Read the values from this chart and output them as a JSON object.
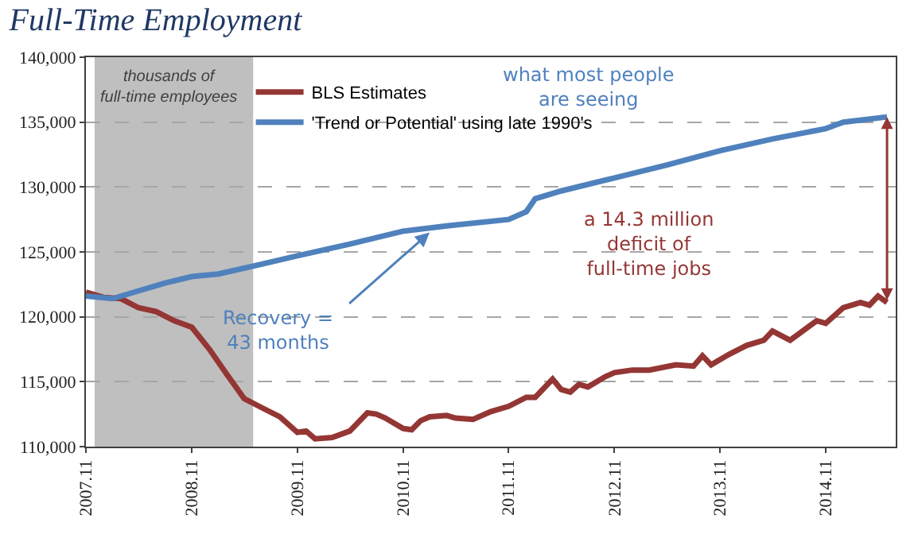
{
  "chart_data": {
    "type": "line",
    "title": "Full-Time Employment",
    "series": [
      {
        "name": "BLS Estimates",
        "color": "#943634",
        "x": [
          "2007-11",
          "2008-01",
          "2008-03",
          "2008-05",
          "2008-07",
          "2008-09",
          "2008-11",
          "2009-01",
          "2009-03",
          "2009-05",
          "2009-07",
          "2009-09",
          "2009-11",
          "2009-12",
          "2010-01",
          "2010-03",
          "2010-05",
          "2010-07",
          "2010-08",
          "2010-09",
          "2010-10",
          "2010-11",
          "2010-12",
          "2011-01",
          "2011-02",
          "2011-04",
          "2011-05",
          "2011-07",
          "2011-09",
          "2011-11",
          "2012-01",
          "2012-02",
          "2012-04",
          "2012-05",
          "2012-06",
          "2012-07",
          "2012-08",
          "2012-10",
          "2012-11",
          "2013-01",
          "2013-03",
          "2013-06",
          "2013-08",
          "2013-09",
          "2013-10",
          "2013-12",
          "2014-02",
          "2014-04",
          "2014-05",
          "2014-07",
          "2014-08",
          "2014-10",
          "2014-11",
          "2015-01",
          "2015-03",
          "2015-04",
          "2015-05",
          "2015-06"
        ],
        "values": [
          121900,
          121500,
          121400,
          120700,
          120400,
          119700,
          119200,
          117500,
          115600,
          113700,
          113000,
          112300,
          111100,
          111200,
          110600,
          110700,
          111200,
          112600,
          112500,
          112200,
          111800,
          111400,
          111300,
          112000,
          112300,
          112400,
          112200,
          112100,
          112700,
          113100,
          113800,
          113800,
          115200,
          114400,
          114200,
          114800,
          114600,
          115400,
          115700,
          115900,
          115900,
          116300,
          116200,
          117000,
          116300,
          117100,
          117800,
          118200,
          118900,
          118200,
          118700,
          119700,
          119500,
          120700,
          121100,
          120900,
          121600,
          121100
        ]
      },
      {
        "name": "'Trend or Potential' using late 1990's",
        "color": "#4f81bd",
        "x": [
          "2007-11",
          "2008-02",
          "2008-05",
          "2008-08",
          "2008-11",
          "2009-02",
          "2009-06",
          "2009-11",
          "2010-05",
          "2010-11",
          "2011-04",
          "2011-11",
          "2012-01",
          "2012-02",
          "2012-05",
          "2012-11",
          "2013-05",
          "2013-11",
          "2014-05",
          "2014-11",
          "2015-01",
          "2015-06"
        ],
        "values": [
          121600,
          121400,
          122000,
          122600,
          123100,
          123300,
          123900,
          124700,
          125600,
          126600,
          127000,
          127500,
          128100,
          129100,
          129700,
          130700,
          131700,
          132800,
          133700,
          134500,
          135000,
          135400
        ]
      }
    ],
    "ylim": [
      110000,
      140000
    ],
    "yticks": [
      {
        "value": 110000,
        "label": "110,000"
      },
      {
        "value": 115000,
        "label": "115,000"
      },
      {
        "value": 120000,
        "label": "120,000"
      },
      {
        "value": 125000,
        "label": "125,000"
      },
      {
        "value": 130000,
        "label": "130,000"
      },
      {
        "value": 135000,
        "label": "135,000"
      },
      {
        "value": 140000,
        "label": "140,000"
      }
    ],
    "xlim": [
      "2007-11",
      "2015-07"
    ],
    "xticks": [
      {
        "value": "2007-11",
        "label": "2007.11"
      },
      {
        "value": "2008-11",
        "label": "2008.11"
      },
      {
        "value": "2009-11",
        "label": "2009.11"
      },
      {
        "value": "2010-11",
        "label": "2010.11"
      },
      {
        "value": "2011-11",
        "label": "2011.11"
      },
      {
        "value": "2012-11",
        "label": "2012.11"
      },
      {
        "value": "2013-11",
        "label": "2013.11"
      },
      {
        "value": "2014-11",
        "label": "2014.11"
      }
    ],
    "bands": [
      {
        "axis": "x",
        "from": "2007-12",
        "to": "2009-06",
        "label": "thousands of full-time employees",
        "color": "#bfbfbf"
      }
    ],
    "annotations": [
      {
        "text": "Recovery = 43 months",
        "x": "2011-02",
        "y": 126500
      },
      "what most people are seeing",
      "a 14.3 million deficit of full-time jobs"
    ],
    "grid": "y",
    "legend": "top left",
    "marker": "none",
    "line_style": "solid"
  }
}
